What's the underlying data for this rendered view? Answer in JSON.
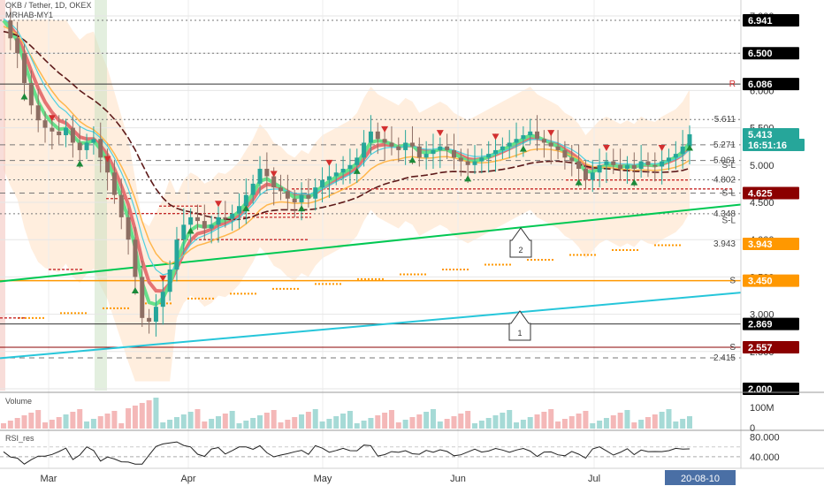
{
  "header": {
    "symbol_line": "OKB / Tether, 1D, OKEX",
    "indicator_name": "MRHAB-MY1"
  },
  "panes": {
    "volume_label": "Volume",
    "rsi_label": "RSI_res"
  },
  "chart_data": {
    "type": "candlestick",
    "title": "OKB / Tether, 1D, OKEX",
    "ylim": [
      2.0,
      7.0
    ],
    "price_axis_ticks": [
      "7.000",
      "6.500",
      "6.000",
      "5.500",
      "5.000",
      "4.500",
      "4.000",
      "3.500",
      "3.000",
      "2.500",
      "2.000"
    ],
    "time_axis_labels": [
      "Mar",
      "Apr",
      "May",
      "Jun",
      "Jul"
    ],
    "current_date_label": "20-08-10",
    "price_badges": [
      {
        "value": "6.941",
        "color": "#000000"
      },
      {
        "value": "6.500",
        "color": "#000000"
      },
      {
        "value": "6.086",
        "color": "#000000"
      },
      {
        "value": "5.413",
        "color": "#26a69a"
      },
      {
        "value": "16:51:16",
        "color": "#26a69a"
      },
      {
        "value": "4.625",
        "color": "#8b0000"
      },
      {
        "value": "3.943",
        "color": "#ff9800"
      },
      {
        "value": "3.450",
        "color": "#ff9800"
      },
      {
        "value": "2.869",
        "color": "#000000"
      },
      {
        "value": "2.557",
        "color": "#8b0000"
      },
      {
        "value": "2.000",
        "color": "#000000"
      }
    ],
    "level_labels": [
      {
        "text": "R",
        "value": 6.086
      },
      {
        "text": "5.611",
        "value": 5.611
      },
      {
        "text": "5.271",
        "value": 5.271
      },
      {
        "text": "5.061",
        "value": 5.061
      },
      {
        "text": "S-L",
        "value": 5.0
      },
      {
        "text": "4.802",
        "value": 4.802
      },
      {
        "text": "S-L",
        "value": 4.625
      },
      {
        "text": "4.348",
        "value": 4.348
      },
      {
        "text": "S-L",
        "value": 4.26
      },
      {
        "text": "3.943",
        "value": 3.943
      },
      {
        "text": "S",
        "value": 3.45
      },
      {
        "text": "S",
        "value": 2.557
      },
      {
        "text": "2.415",
        "value": 2.415
      }
    ],
    "trendlines": [
      {
        "name": "1",
        "start": [
          0,
          2.41
        ],
        "end": [
          1,
          3.29
        ],
        "color": "#26c6da"
      },
      {
        "name": "2",
        "start": [
          0,
          3.44
        ],
        "end": [
          1,
          4.47
        ],
        "color": "#00c853"
      }
    ],
    "horizontal_lines": [
      {
        "value": 6.086,
        "color": "#333333"
      },
      {
        "value": 3.45,
        "color": "#ff9800"
      },
      {
        "value": 2.869,
        "color": "#333333"
      },
      {
        "value": 2.557,
        "color": "#8b0000"
      }
    ],
    "volume_axis_ticks": [
      "100M",
      "0"
    ],
    "rsi_axis_ticks": [
      "80.000",
      "40.000"
    ],
    "series_close": [
      6.94,
      6.7,
      6.5,
      6.1,
      5.8,
      5.6,
      5.5,
      5.45,
      5.4,
      5.5,
      5.3,
      5.2,
      5.3,
      5.35,
      5.1,
      4.9,
      4.6,
      4.3,
      4.0,
      3.5,
      2.95,
      2.9,
      3.1,
      3.3,
      3.6,
      4.0,
      4.2,
      4.3,
      4.25,
      4.15,
      4.2,
      4.3,
      4.28,
      4.35,
      4.45,
      4.6,
      4.75,
      4.95,
      4.85,
      4.7,
      4.65,
      4.55,
      4.5,
      4.6,
      4.55,
      4.7,
      4.8,
      4.85,
      4.9,
      4.95,
      5.0,
      5.1,
      5.3,
      5.45,
      5.35,
      5.3,
      5.25,
      5.2,
      5.3,
      5.25,
      5.1,
      5.15,
      5.2,
      5.25,
      5.2,
      5.1,
      5.05,
      5.0,
      5.05,
      5.1,
      5.15,
      5.2,
      5.25,
      5.3,
      5.35,
      5.4,
      5.45,
      5.35,
      5.3,
      5.25,
      5.2,
      5.1,
      5.05,
      4.95,
      4.8,
      4.9,
      5.0,
      5.05,
      5.0,
      4.95,
      5.0,
      4.95,
      5.05,
      5.0,
      4.98,
      5.05,
      5.1,
      5.15,
      5.25,
      5.413
    ]
  }
}
